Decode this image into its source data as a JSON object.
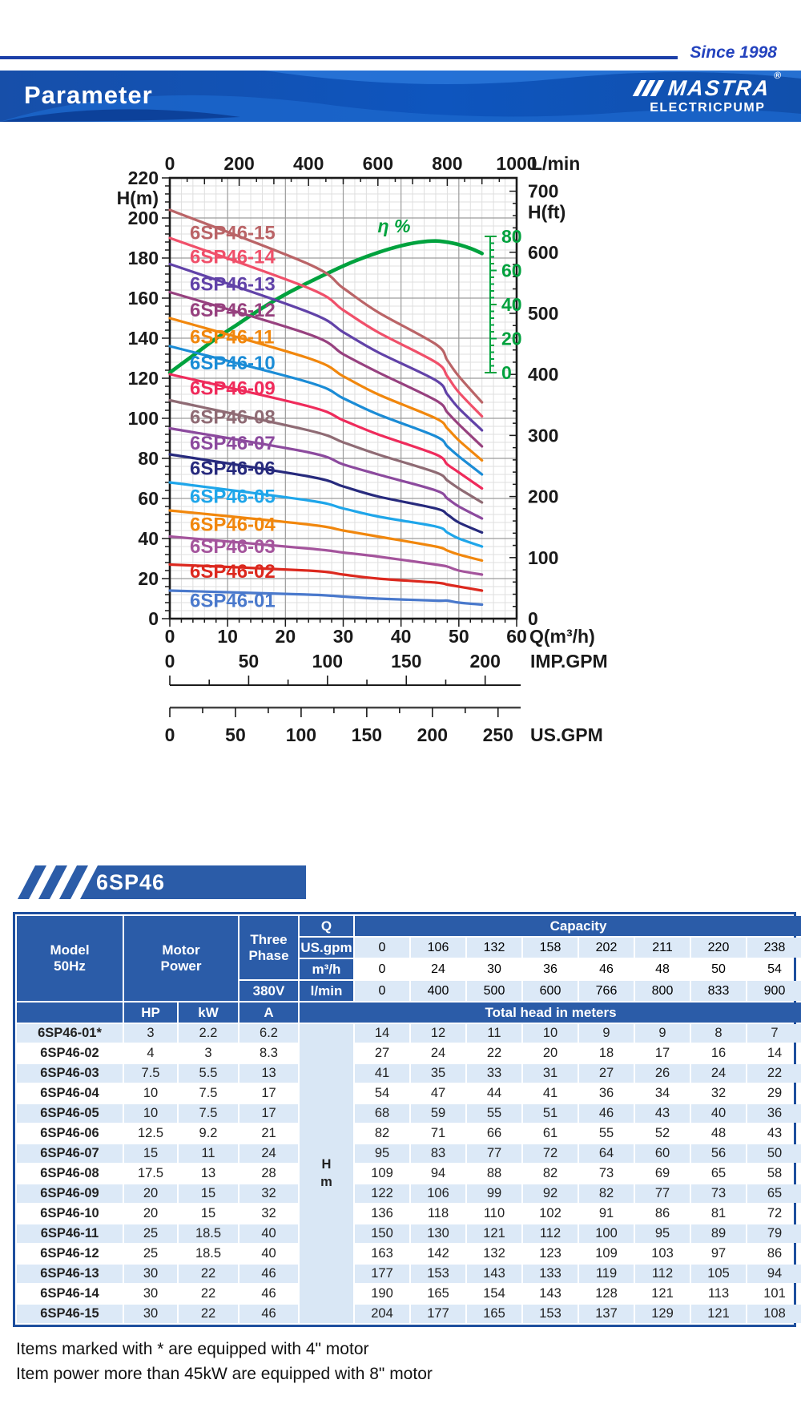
{
  "header": {
    "since_text": "Since 1998",
    "title": "Parameter",
    "brand": "MASTRA",
    "brand_reg": "®",
    "brand_sub": "ELECTRICPUMP"
  },
  "section": {
    "title": "6SP46"
  },
  "chart_data": {
    "type": "line",
    "title": "6SP46 pump performance curves",
    "axes": {
      "top": {
        "label": "L/min",
        "ticks": [
          0,
          200,
          400,
          600,
          800,
          1000
        ],
        "range": [
          0,
          1000
        ]
      },
      "bottom": {
        "label": "Q(m³/h)",
        "ticks": [
          0,
          10,
          20,
          30,
          40,
          50,
          60
        ],
        "range": [
          0,
          60
        ]
      },
      "left": {
        "label": "H(m)",
        "ticks": [
          0,
          20,
          40,
          60,
          80,
          100,
          120,
          140,
          160,
          180,
          200,
          220
        ],
        "range": [
          0,
          220
        ]
      },
      "right": {
        "label": "H(ft)",
        "ticks": [
          0,
          100,
          200,
          300,
          400,
          500,
          600,
          700
        ],
        "range": [
          0,
          721
        ]
      },
      "efficiency": {
        "label": "η %",
        "ticks": [
          0,
          20,
          40,
          60,
          80
        ],
        "range": [
          0,
          80
        ],
        "color": "#00A23E"
      },
      "imp_gpm": {
        "label": "IMP.GPM",
        "ticks": [
          0,
          50,
          100,
          150,
          200
        ]
      },
      "us_gpm": {
        "label": "US.GPM",
        "ticks": [
          0,
          50,
          100,
          150,
          200,
          250
        ]
      }
    },
    "grid": {
      "minor_q": 2,
      "major_q": 10,
      "minor_h": 4,
      "major_h": 20
    },
    "q_values": [
      0,
      24,
      30,
      36,
      46,
      48,
      50,
      54
    ],
    "series": [
      {
        "name": "6SP46-15",
        "color": "#BA6467",
        "label_h": 193,
        "heads": [
          204,
          177,
          165,
          153,
          137,
          129,
          121,
          108
        ]
      },
      {
        "name": "6SP46-14",
        "color": "#F0506A",
        "label_h": 181,
        "heads": [
          190,
          165,
          154,
          143,
          128,
          121,
          113,
          101
        ]
      },
      {
        "name": "6SP46-13",
        "color": "#6142A8",
        "label_h": 167.5,
        "heads": [
          177,
          153,
          143,
          133,
          119,
          112,
          105,
          94
        ]
      },
      {
        "name": "6SP46-12",
        "color": "#97417F",
        "label_h": 154.5,
        "heads": [
          163,
          142,
          132,
          123,
          109,
          103,
          97,
          86
        ]
      },
      {
        "name": "6SP46-11",
        "color": "#F1870D",
        "label_h": 141,
        "heads": [
          150,
          130,
          121,
          112,
          100,
          95,
          89,
          79
        ]
      },
      {
        "name": "6SP46-10",
        "color": "#1B8CD6",
        "label_h": 128,
        "heads": [
          136,
          118,
          110,
          102,
          91,
          86,
          81,
          72
        ]
      },
      {
        "name": "6SP46-09",
        "color": "#EF2B5B",
        "label_h": 115.5,
        "heads": [
          122,
          106,
          99,
          92,
          82,
          77,
          73,
          65
        ]
      },
      {
        "name": "6SP46-08",
        "color": "#8F6B74",
        "label_h": 101,
        "heads": [
          109,
          94,
          88,
          82,
          73,
          69,
          65,
          58
        ]
      },
      {
        "name": "6SP46-07",
        "color": "#8C4A9E",
        "label_h": 88,
        "heads": [
          95,
          83,
          77,
          72,
          64,
          60,
          56,
          50
        ]
      },
      {
        "name": "6SP46-06",
        "color": "#272A7D",
        "label_h": 75.5,
        "heads": [
          82,
          71,
          66,
          61,
          55,
          52,
          48,
          43
        ]
      },
      {
        "name": "6SP46-05",
        "color": "#1FA6EA",
        "label_h": 61.5,
        "heads": [
          68,
          59,
          55,
          51,
          46,
          43,
          40,
          36
        ]
      },
      {
        "name": "6SP46-04",
        "color": "#F1870D",
        "label_h": 47.5,
        "heads": [
          54,
          47,
          44,
          41,
          36,
          34,
          32,
          29
        ]
      },
      {
        "name": "6SP46-03",
        "color": "#A4549C",
        "label_h": 36.5,
        "heads": [
          41,
          35,
          33,
          31,
          27,
          26,
          24,
          22
        ]
      },
      {
        "name": "6SP46-02",
        "color": "#DC281E",
        "label_h": 24,
        "heads": [
          27,
          24,
          22,
          20,
          18,
          17,
          16,
          14
        ]
      },
      {
        "name": "6SP46-01",
        "color": "#4A79CC",
        "label_h": 9.5,
        "heads": [
          14,
          12,
          11,
          10,
          9,
          9,
          8,
          7
        ]
      }
    ],
    "efficiency_curve": {
      "color": "#00A23E",
      "q": [
        0,
        4,
        8,
        12,
        16,
        20,
        24,
        28,
        32,
        36,
        40,
        43,
        46,
        49,
        52,
        54
      ],
      "eta": [
        0,
        10,
        20,
        29,
        38,
        46,
        53,
        59.5,
        65.5,
        70.5,
        74.5,
        76.5,
        77.3,
        76,
        73,
        70
      ]
    }
  },
  "table": {
    "header": {
      "model_line1": "Model",
      "model_line2": "50Hz",
      "motor_line1": "Motor",
      "motor_line2": "Power",
      "three_line1": "Three",
      "three_line2": "Phase",
      "volt": "380V",
      "q": "Q",
      "capacity": "Capacity",
      "hp": "HP",
      "kw": "kW",
      "a": "A",
      "total_head": "Total head in meters",
      "h": "H",
      "m": "m"
    },
    "capacity_rows": [
      {
        "label": "US.gpm",
        "shaded": true,
        "values": [
          "0",
          "106",
          "132",
          "158",
          "202",
          "211",
          "220",
          "238"
        ]
      },
      {
        "label": "m³/h",
        "shaded": false,
        "values": [
          "0",
          "24",
          "30",
          "36",
          "46",
          "48",
          "50",
          "54"
        ]
      },
      {
        "label": "l/min",
        "shaded": true,
        "values": [
          "0",
          "400",
          "500",
          "600",
          "766",
          "800",
          "833",
          "900"
        ]
      }
    ],
    "rows": [
      {
        "model": "6SP46-01*",
        "hp": "3",
        "kw": "2.2",
        "a": "6.2",
        "heads": [
          "14",
          "12",
          "11",
          "10",
          "9",
          "9",
          "8",
          "7"
        ]
      },
      {
        "model": "6SP46-02",
        "hp": "4",
        "kw": "3",
        "a": "8.3",
        "heads": [
          "27",
          "24",
          "22",
          "20",
          "18",
          "17",
          "16",
          "14"
        ]
      },
      {
        "model": "6SP46-03",
        "hp": "7.5",
        "kw": "5.5",
        "a": "13",
        "heads": [
          "41",
          "35",
          "33",
          "31",
          "27",
          "26",
          "24",
          "22"
        ]
      },
      {
        "model": "6SP46-04",
        "hp": "10",
        "kw": "7.5",
        "a": "17",
        "heads": [
          "54",
          "47",
          "44",
          "41",
          "36",
          "34",
          "32",
          "29"
        ]
      },
      {
        "model": "6SP46-05",
        "hp": "10",
        "kw": "7.5",
        "a": "17",
        "heads": [
          "68",
          "59",
          "55",
          "51",
          "46",
          "43",
          "40",
          "36"
        ]
      },
      {
        "model": "6SP46-06",
        "hp": "12.5",
        "kw": "9.2",
        "a": "21",
        "heads": [
          "82",
          "71",
          "66",
          "61",
          "55",
          "52",
          "48",
          "43"
        ]
      },
      {
        "model": "6SP46-07",
        "hp": "15",
        "kw": "11",
        "a": "24",
        "heads": [
          "95",
          "83",
          "77",
          "72",
          "64",
          "60",
          "56",
          "50"
        ]
      },
      {
        "model": "6SP46-08",
        "hp": "17.5",
        "kw": "13",
        "a": "28",
        "heads": [
          "109",
          "94",
          "88",
          "82",
          "73",
          "69",
          "65",
          "58"
        ]
      },
      {
        "model": "6SP46-09",
        "hp": "20",
        "kw": "15",
        "a": "32",
        "heads": [
          "122",
          "106",
          "99",
          "92",
          "82",
          "77",
          "73",
          "65"
        ]
      },
      {
        "model": "6SP46-10",
        "hp": "20",
        "kw": "15",
        "a": "32",
        "heads": [
          "136",
          "118",
          "110",
          "102",
          "91",
          "86",
          "81",
          "72"
        ]
      },
      {
        "model": "6SP46-11",
        "hp": "25",
        "kw": "18.5",
        "a": "40",
        "heads": [
          "150",
          "130",
          "121",
          "112",
          "100",
          "95",
          "89",
          "79"
        ]
      },
      {
        "model": "6SP46-12",
        "hp": "25",
        "kw": "18.5",
        "a": "40",
        "heads": [
          "163",
          "142",
          "132",
          "123",
          "109",
          "103",
          "97",
          "86"
        ]
      },
      {
        "model": "6SP46-13",
        "hp": "30",
        "kw": "22",
        "a": "46",
        "heads": [
          "177",
          "153",
          "143",
          "133",
          "119",
          "112",
          "105",
          "94"
        ]
      },
      {
        "model": "6SP46-14",
        "hp": "30",
        "kw": "22",
        "a": "46",
        "heads": [
          "190",
          "165",
          "154",
          "143",
          "128",
          "121",
          "113",
          "101"
        ]
      },
      {
        "model": "6SP46-15",
        "hp": "30",
        "kw": "22",
        "a": "46",
        "heads": [
          "204",
          "177",
          "165",
          "153",
          "137",
          "129",
          "121",
          "108"
        ]
      }
    ]
  },
  "footnotes": [
    "Items marked with * are equipped with 4\" motor",
    "Item power more than 45kW are equipped with 8\" motor"
  ]
}
